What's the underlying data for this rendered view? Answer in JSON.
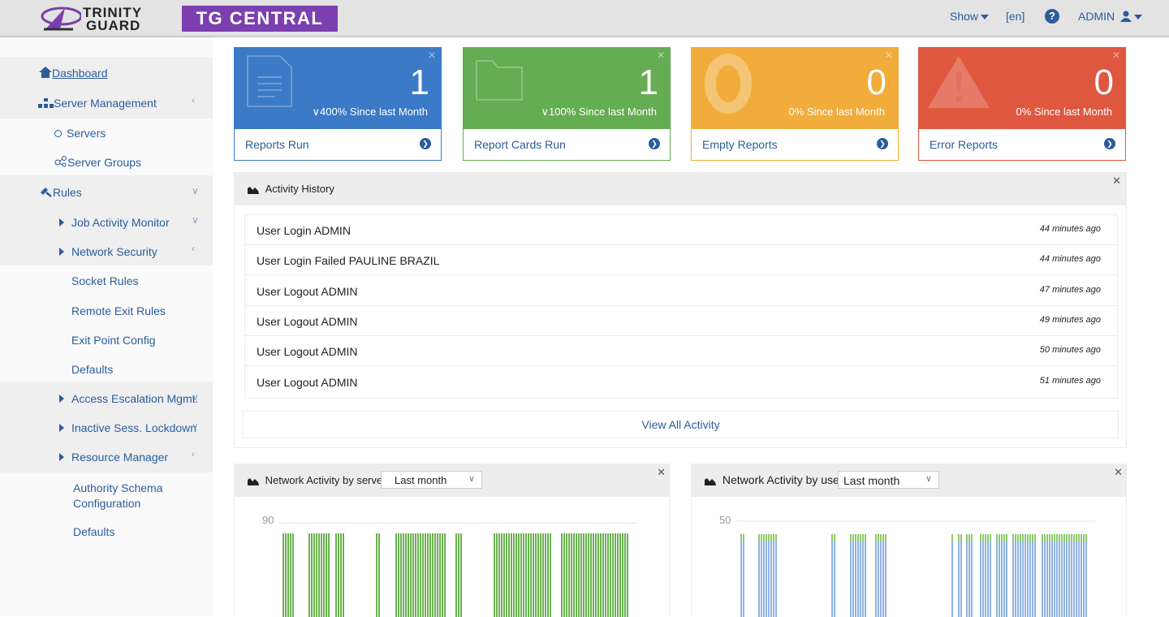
{
  "header": {
    "logo_line1": "TRINITY",
    "logo_line2": "GUARD",
    "brand": "TG CENTRAL",
    "show_label": "Show",
    "language": "[en]",
    "help": "?",
    "user": "ADMIN"
  },
  "sidebar": {
    "dashboard": "Dashboard",
    "server_management": "Server Management",
    "servers": "Servers",
    "server_groups": "Server Groups",
    "rules": "Rules",
    "job_activity_monitor": "Job Activity Monitor",
    "network_security": "Network Security",
    "socket_rules": "Socket Rules",
    "remote_exit_rules": "Remote Exit Rules",
    "exit_point_config": "Exit Point Config",
    "defaults1": "Defaults",
    "access_escalation": "Access Escalation Mgmt.",
    "inactive_lockdown": "Inactive Sess. Lockdown",
    "resource_manager": "Resource Manager",
    "authority_line1": "Authority Schema",
    "authority_line2": "Configuration",
    "defaults2": "Defaults"
  },
  "cards": [
    {
      "value": "1",
      "since": "400% Since last Month",
      "label": "Reports Run",
      "color": "#3b7ac6"
    },
    {
      "value": "1",
      "since": "100% Since last Month",
      "label": "Report Cards Run",
      "color": "#64ad52"
    },
    {
      "value": "0",
      "since": "0% Since last Month",
      "label": "Empty Reports",
      "color": "#f1ac3b"
    },
    {
      "value": "0",
      "since": "0% Since last Month",
      "label": "Error Reports",
      "color": "#e0573f"
    }
  ],
  "activity": {
    "title": "Activity History",
    "items": [
      {
        "text": "User Login ADMIN",
        "time": "44 minutes ago"
      },
      {
        "text": "User Login Failed PAULINE BRAZIL",
        "time": "44 minutes ago"
      },
      {
        "text": "User Logout ADMIN",
        "time": "47 minutes ago"
      },
      {
        "text": "User Logout ADMIN",
        "time": "49 minutes ago"
      },
      {
        "text": "User Logout ADMIN",
        "time": "50 minutes ago"
      },
      {
        "text": "User Logout ADMIN",
        "time": "51 minutes ago"
      }
    ],
    "view_all": "View All Activity"
  },
  "server_chart": {
    "title": "Network Activity by server",
    "period": "Last month",
    "ymax_label": "90",
    "color": "#6ab150"
  },
  "user_chart": {
    "title": "Network Activity by user",
    "period": "Last month",
    "ymax_label": "50",
    "color": "#8fb3e3",
    "cap_color": "#8cc96b"
  },
  "chart_data": [
    {
      "type": "bar",
      "title": "Network Activity by server",
      "ymax_label": "90",
      "ylim": [
        0,
        90
      ],
      "grid": true
    },
    {
      "type": "bar",
      "title": "Network Activity by user",
      "ymax_label": "50",
      "ylim": [
        0,
        50
      ],
      "grid": true
    }
  ]
}
